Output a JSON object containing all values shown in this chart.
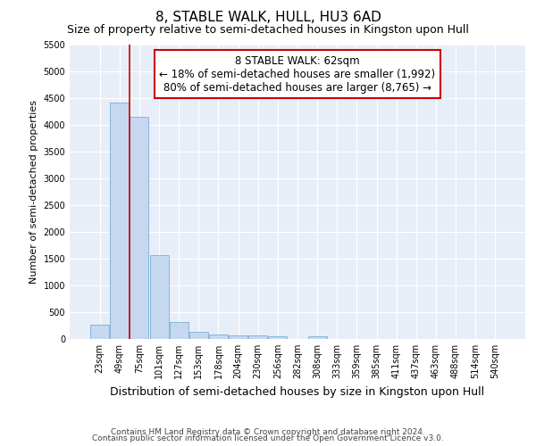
{
  "title": "8, STABLE WALK, HULL, HU3 6AD",
  "subtitle": "Size of property relative to semi-detached houses in Kingston upon Hull",
  "xlabel": "Distribution of semi-detached houses by size in Kingston upon Hull",
  "ylabel": "Number of semi-detached properties",
  "footer1": "Contains HM Land Registry data © Crown copyright and database right 2024.",
  "footer2": "Contains public sector information licensed under the Open Government Licence v3.0.",
  "categories": [
    "23sqm",
    "49sqm",
    "75sqm",
    "101sqm",
    "127sqm",
    "153sqm",
    "178sqm",
    "204sqm",
    "230sqm",
    "256sqm",
    "282sqm",
    "308sqm",
    "333sqm",
    "359sqm",
    "385sqm",
    "411sqm",
    "437sqm",
    "463sqm",
    "488sqm",
    "514sqm",
    "540sqm"
  ],
  "values": [
    270,
    4420,
    4150,
    1560,
    320,
    130,
    80,
    65,
    60,
    55,
    0,
    55,
    0,
    0,
    0,
    0,
    0,
    0,
    0,
    0,
    0
  ],
  "bar_color": "#c5d8f0",
  "bar_edge_color": "#7aafd4",
  "property_label": "8 STABLE WALK: 62sqm",
  "pct_smaller": 18,
  "pct_larger": 80,
  "count_smaller": 1992,
  "count_larger": 8765,
  "vline_color": "#cc0000",
  "vline_pos": 1.5,
  "annotation_box_edge": "#cc0000",
  "ylim": [
    0,
    5500
  ],
  "yticks": [
    0,
    500,
    1000,
    1500,
    2000,
    2500,
    3000,
    3500,
    4000,
    4500,
    5000,
    5500
  ],
  "bg_color": "#e8eef8",
  "grid_color": "#ffffff",
  "fig_bg_color": "#ffffff",
  "title_fontsize": 11,
  "subtitle_fontsize": 9,
  "xlabel_fontsize": 9,
  "ylabel_fontsize": 8,
  "tick_fontsize": 7,
  "annotation_fontsize": 8.5,
  "footer_fontsize": 6.5
}
